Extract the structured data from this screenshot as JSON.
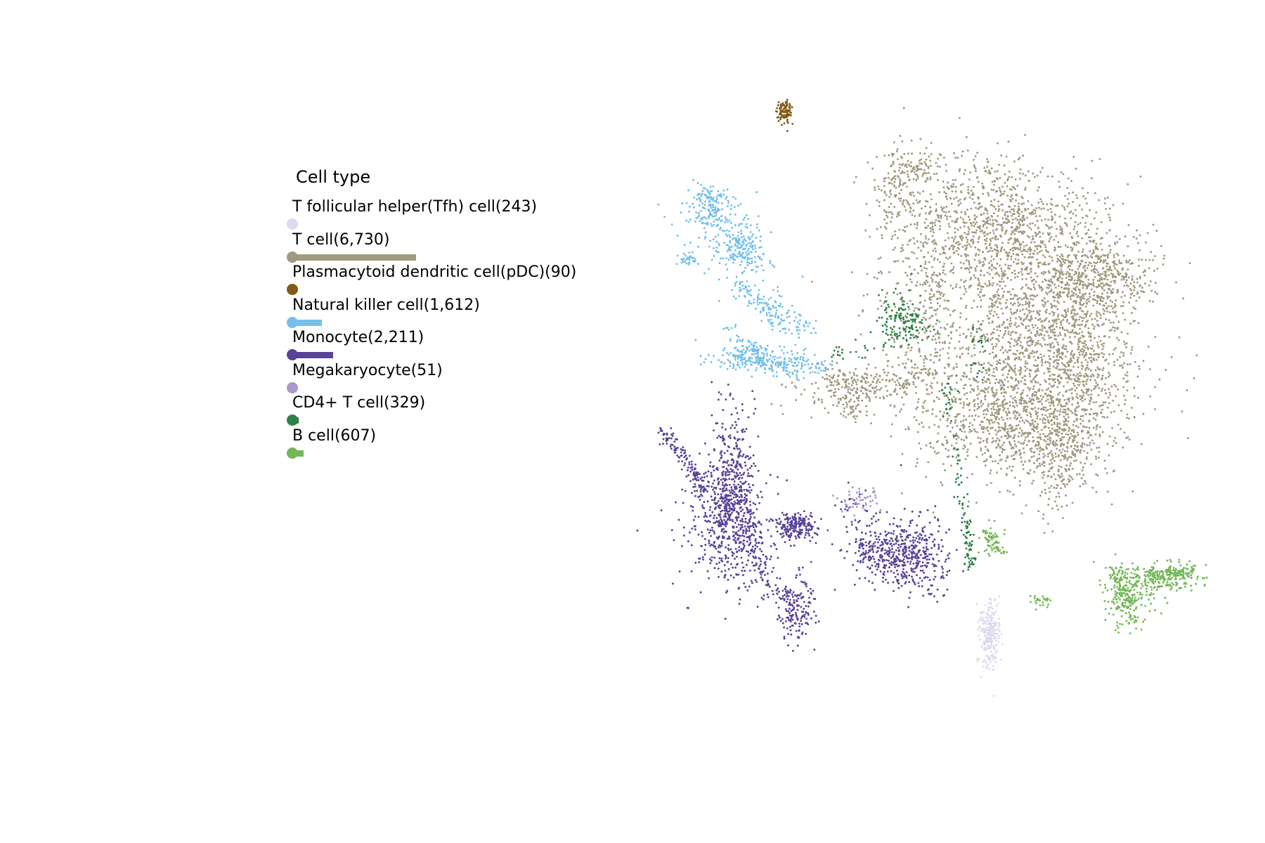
{
  "chart_data": {
    "type": "scatter",
    "legend": {
      "title": "Cell type",
      "placement": "left",
      "items": [
        {
          "label": "T follicular helper(Tfh) cell(243)",
          "count": 243,
          "color": "#dcdaee"
        },
        {
          "label": "T cell(6,730)",
          "count": 6730,
          "color": "#a09a80"
        },
        {
          "label": "Plasmacytoid dendritic cell(pDC)(90)",
          "count": 90,
          "color": "#845a18"
        },
        {
          "label": "Natural killer cell(1,612)",
          "count": 1612,
          "color": "#74c0ea"
        },
        {
          "label": "Monocyte(2,211)",
          "count": 2211,
          "color": "#574497"
        },
        {
          "label": "Megakaryocyte(51)",
          "count": 51,
          "color": "#a898cc"
        },
        {
          "label": "CD4+ T cell(329)",
          "count": 329,
          "color": "#2e8148"
        },
        {
          "label": "B cell(607)",
          "count": 607,
          "color": "#74b85a"
        }
      ]
    },
    "axes_visible": false,
    "grid": false
  }
}
